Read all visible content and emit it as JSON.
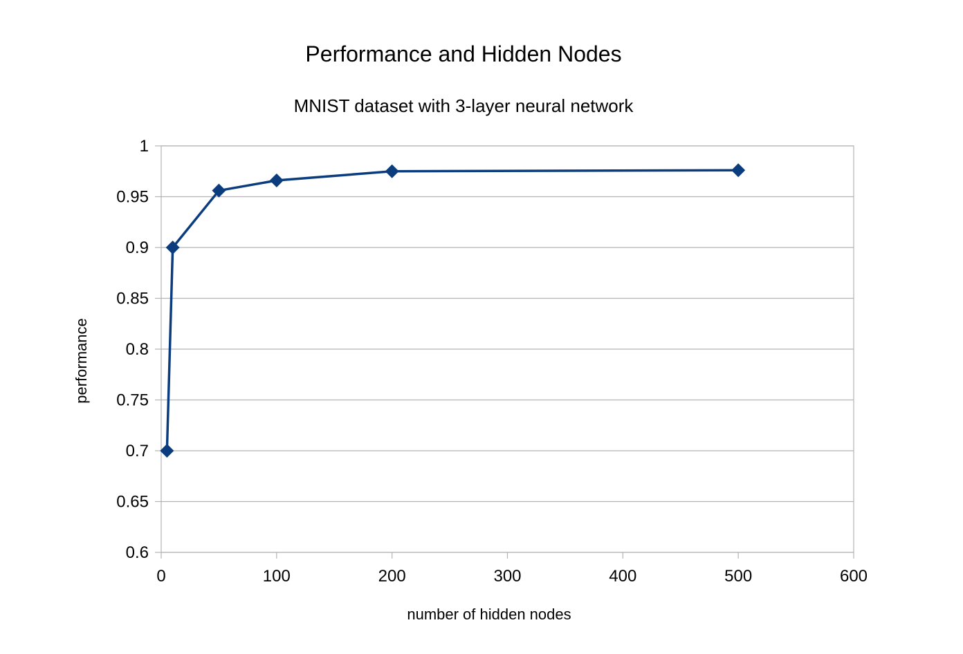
{
  "chart_data": {
    "type": "line",
    "title": "Performance and Hidden Nodes",
    "subtitle": "MNIST dataset with 3-layer neural network",
    "xlabel": "number of hidden nodes",
    "ylabel": "performance",
    "xlim": [
      0,
      600
    ],
    "ylim": [
      0.6,
      1
    ],
    "xticks": [
      0,
      100,
      200,
      300,
      400,
      500,
      600
    ],
    "xtick_labels": [
      "0",
      "100",
      "200",
      "300",
      "400",
      "500",
      "600"
    ],
    "yticks": [
      0.6,
      0.65,
      0.7,
      0.75,
      0.8,
      0.85,
      0.9,
      0.95,
      1
    ],
    "ytick_labels": [
      "0.6",
      "0.65",
      "0.7",
      "0.75",
      "0.8",
      "0.85",
      "0.9",
      "0.95",
      "1"
    ],
    "grid": "horizontal",
    "legend": "none",
    "series": [
      {
        "color": "#0b3d7e",
        "marker": "diamond",
        "x": [
          5,
          10,
          50,
          100,
          200,
          500
        ],
        "y": [
          0.7,
          0.9,
          0.956,
          0.966,
          0.975,
          0.976
        ]
      }
    ]
  }
}
